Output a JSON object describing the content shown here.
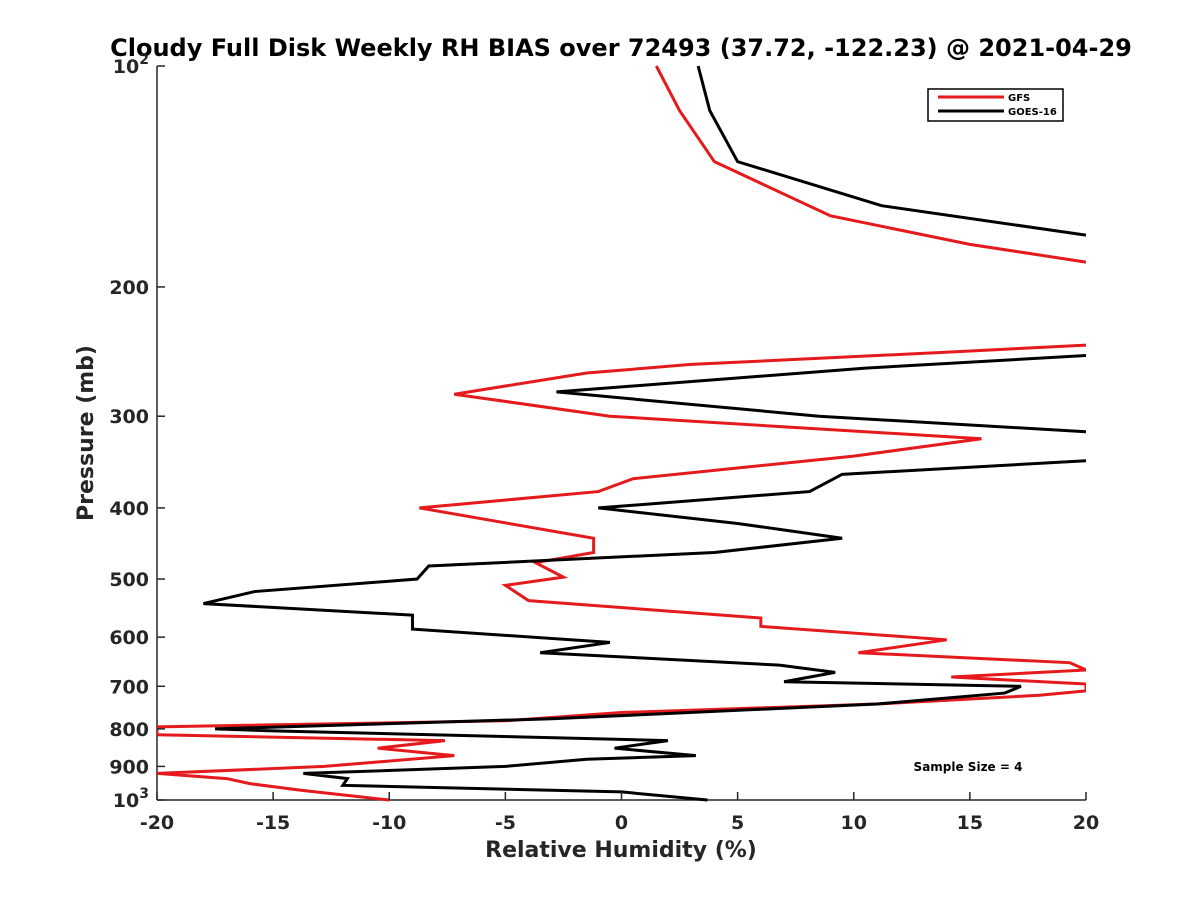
{
  "chart_data": {
    "type": "line",
    "title": "Cloudy Full Disk Weekly RH BIAS over 72493 (37.72, -122.23) @ 2021-04-29",
    "xlabel": "Relative Humidity (%)",
    "ylabel": "Pressure (mb)",
    "xlim": [
      -20,
      20
    ],
    "ylim": [
      100,
      1000
    ],
    "y_scale": "log",
    "y_reversed": true,
    "x_ticks": [
      -20,
      -15,
      -10,
      -5,
      0,
      5,
      10,
      15,
      20
    ],
    "x_tick_labels": [
      "-20",
      "-15",
      "-10",
      "-5",
      "0",
      "5",
      "10",
      "15",
      "20"
    ],
    "y_ticks": [
      100,
      200,
      300,
      400,
      500,
      600,
      700,
      800,
      900,
      1000
    ],
    "y_tick_labels": [
      {
        "base": "10",
        "exp": "2"
      },
      {
        "text": "200"
      },
      {
        "text": "300"
      },
      {
        "text": "400"
      },
      {
        "text": "500"
      },
      {
        "text": "600"
      },
      {
        "text": "700"
      },
      {
        "text": "800"
      },
      {
        "text": "900"
      },
      {
        "base": "10",
        "exp": "3"
      }
    ],
    "grid": false,
    "legend_position": "top-right",
    "annotation": "Sample Size = 4",
    "series": [
      {
        "name": "GFS",
        "color": "#e41a1c",
        "points": [
          [
            1.5,
            100
          ],
          [
            2.5,
            115
          ],
          [
            4.0,
            135
          ],
          [
            9.0,
            160
          ],
          [
            15.0,
            175
          ],
          [
            20.0,
            185
          ],
          [
            null,
            null
          ],
          [
            20.0,
            240
          ],
          [
            14.5,
            245
          ],
          [
            3.0,
            255
          ],
          [
            -1.5,
            262
          ],
          [
            -7.2,
            280
          ],
          [
            -0.5,
            300
          ],
          [
            15.5,
            322
          ],
          [
            10.0,
            340
          ],
          [
            0.5,
            365
          ],
          [
            -1.0,
            380
          ],
          [
            -8.7,
            400
          ],
          [
            -1.2,
            440
          ],
          [
            -1.2,
            460
          ],
          [
            -3.7,
            475
          ],
          [
            -2.5,
            497
          ],
          [
            -5.0,
            510
          ],
          [
            -4.0,
            535
          ],
          [
            6.0,
            565
          ],
          [
            6.0,
            580
          ],
          [
            14.0,
            605
          ],
          [
            10.2,
            630
          ],
          [
            19.3,
            650
          ],
          [
            20.0,
            665
          ],
          [
            14.2,
            680
          ],
          [
            20.0,
            695
          ],
          [
            20.0,
            710
          ],
          [
            18.0,
            720
          ],
          [
            11.0,
            740
          ],
          [
            0.0,
            760
          ],
          [
            -5.0,
            780
          ],
          [
            -20.0,
            795
          ],
          [
            -20.0,
            815
          ],
          [
            -7.6,
            830
          ],
          [
            -10.5,
            850
          ],
          [
            -7.2,
            870
          ],
          [
            -12.8,
            900
          ],
          [
            -20.0,
            920
          ],
          [
            -17.0,
            935
          ],
          [
            -16.0,
            950
          ],
          [
            -13.8,
            970
          ],
          [
            -10.0,
            1000
          ]
        ]
      },
      {
        "name": "GOES-16",
        "color": "#000000",
        "points": [
          [
            3.3,
            100
          ],
          [
            3.8,
            115
          ],
          [
            5.0,
            135
          ],
          [
            11.2,
            155
          ],
          [
            20.0,
            170
          ],
          [
            null,
            null
          ],
          [
            20.0,
            248
          ],
          [
            10.5,
            258
          ],
          [
            -2.8,
            278
          ],
          [
            8.5,
            300
          ],
          [
            20.0,
            315
          ],
          [
            null,
            null
          ],
          [
            20.0,
            345
          ],
          [
            9.5,
            360
          ],
          [
            8.1,
            380
          ],
          [
            -1.0,
            400
          ],
          [
            5.0,
            420
          ],
          [
            9.5,
            440
          ],
          [
            4.0,
            460
          ],
          [
            -8.3,
            480
          ],
          [
            -8.8,
            500
          ],
          [
            -15.8,
            520
          ],
          [
            -18.0,
            540
          ],
          [
            -9.0,
            560
          ],
          [
            -9.0,
            585
          ],
          [
            -0.5,
            610
          ],
          [
            -3.5,
            630
          ],
          [
            6.8,
            655
          ],
          [
            9.2,
            670
          ],
          [
            7.0,
            690
          ],
          [
            17.2,
            700
          ],
          [
            16.5,
            715
          ],
          [
            11.0,
            740
          ],
          [
            -3.0,
            775
          ],
          [
            -17.5,
            800
          ],
          [
            -15.0,
            805
          ],
          [
            2.0,
            830
          ],
          [
            -0.3,
            850
          ],
          [
            3.2,
            870
          ],
          [
            -1.5,
            880
          ],
          [
            -5.0,
            900
          ],
          [
            -13.7,
            920
          ],
          [
            -11.8,
            935
          ],
          [
            -12.0,
            955
          ],
          [
            0.0,
            975
          ],
          [
            3.7,
            1000
          ]
        ]
      }
    ]
  }
}
